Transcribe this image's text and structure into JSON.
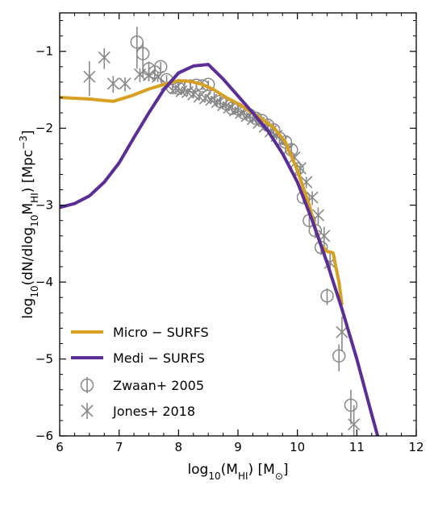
{
  "chart_data": {
    "type": "line",
    "title": "",
    "xlabel": "log₁₀(M_HI) [M⊙]",
    "ylabel": "log₁₀(dN/dlog₁₀M_HI) [Mpc⁻³]",
    "xlim": [
      6,
      12
    ],
    "ylim": [
      -6,
      -0.5
    ],
    "x_ticks": [
      6,
      7,
      8,
      9,
      10,
      11,
      12
    ],
    "y_ticks": [
      -6,
      -5,
      -4,
      -3,
      -2,
      -1
    ],
    "grid": false,
    "legend_position": "bottom-left",
    "series": [
      {
        "name": "Micro − SURFS",
        "color": "#d8a020",
        "style": "line",
        "x": [
          6.0,
          6.5,
          6.9,
          7.2,
          7.5,
          7.8,
          8.0,
          8.2,
          8.4,
          8.6,
          8.8,
          9.0,
          9.2,
          9.4,
          9.6,
          9.8,
          10.0,
          10.2,
          10.3,
          10.4,
          10.5,
          10.6,
          10.7,
          10.75
        ],
        "y": [
          -1.6,
          -1.62,
          -1.65,
          -1.58,
          -1.49,
          -1.42,
          -1.38,
          -1.39,
          -1.43,
          -1.5,
          -1.6,
          -1.68,
          -1.78,
          -1.88,
          -1.99,
          -2.18,
          -2.55,
          -3.0,
          -3.3,
          -3.52,
          -3.6,
          -3.62,
          -4.0,
          -4.3
        ]
      },
      {
        "name": "Medi − SURFS",
        "color": "#5b2d96",
        "style": "line",
        "x": [
          6.0,
          6.25,
          6.5,
          6.75,
          7.0,
          7.25,
          7.5,
          7.75,
          8.0,
          8.25,
          8.5,
          8.75,
          9.0,
          9.25,
          9.5,
          9.75,
          10.0,
          10.25,
          10.5,
          10.75,
          11.0,
          11.25,
          11.35
        ],
        "y": [
          -3.03,
          -2.98,
          -2.88,
          -2.7,
          -2.45,
          -2.12,
          -1.8,
          -1.5,
          -1.28,
          -1.19,
          -1.17,
          -1.36,
          -1.58,
          -1.8,
          -2.03,
          -2.33,
          -2.7,
          -3.2,
          -3.75,
          -4.35,
          -5.0,
          -5.72,
          -6.0
        ]
      },
      {
        "name": "Zwaan+ 2005",
        "color": "#888888",
        "style": "scatter-open-circle-errorbar",
        "x": [
          7.3,
          7.4,
          7.5,
          7.6,
          7.7,
          7.8,
          7.9,
          8.0,
          8.1,
          8.2,
          8.3,
          8.4,
          8.5,
          8.6,
          8.7,
          8.8,
          8.9,
          9.0,
          9.1,
          9.2,
          9.3,
          9.4,
          9.5,
          9.6,
          9.7,
          9.8,
          9.9,
          10.0,
          10.1,
          10.2,
          10.3,
          10.4,
          10.5,
          10.7,
          10.9
        ],
        "y": [
          -0.88,
          -1.03,
          -1.23,
          -1.27,
          -1.2,
          -1.37,
          -1.47,
          -1.48,
          -1.45,
          -1.45,
          -1.44,
          -1.45,
          -1.43,
          -1.58,
          -1.65,
          -1.68,
          -1.74,
          -1.75,
          -1.8,
          -1.83,
          -1.87,
          -1.9,
          -1.96,
          -2.02,
          -2.13,
          -2.18,
          -2.28,
          -2.53,
          -2.9,
          -3.2,
          -3.33,
          -3.55,
          -4.18,
          -4.96,
          -5.6
        ],
        "err_low": [
          0.35,
          0.3,
          0.15,
          0.12,
          0.1,
          0.1,
          0.07,
          0.06,
          0.05,
          0.05,
          0.05,
          0.05,
          0.05,
          0.05,
          0.05,
          0.05,
          0.05,
          0.05,
          0.05,
          0.05,
          0.05,
          0.05,
          0.05,
          0.05,
          0.06,
          0.06,
          0.06,
          0.07,
          0.07,
          0.08,
          0.1,
          0.1,
          0.12,
          0.2,
          0.25
        ],
        "err_high": [
          0.2,
          0.15,
          0.1,
          0.08,
          0.06,
          0.06,
          0.05,
          0.05,
          0.05,
          0.05,
          0.05,
          0.05,
          0.05,
          0.05,
          0.05,
          0.05,
          0.05,
          0.05,
          0.05,
          0.05,
          0.05,
          0.05,
          0.05,
          0.05,
          0.05,
          0.05,
          0.05,
          0.06,
          0.06,
          0.07,
          0.08,
          0.08,
          0.1,
          0.15,
          0.2
        ]
      },
      {
        "name": "Jones+ 2018",
        "color": "#888888",
        "style": "scatter-x-errorbar",
        "x": [
          6.5,
          6.75,
          6.9,
          7.1,
          7.35,
          7.5,
          7.65,
          7.8,
          7.95,
          8.05,
          8.15,
          8.25,
          8.35,
          8.45,
          8.55,
          8.65,
          8.75,
          8.85,
          8.95,
          9.05,
          9.15,
          9.25,
          9.35,
          9.45,
          9.55,
          9.65,
          9.75,
          9.85,
          9.95,
          10.05,
          10.15,
          10.25,
          10.35,
          10.45,
          10.55,
          10.75,
          10.95
        ],
        "y": [
          -1.33,
          -1.08,
          -1.42,
          -1.42,
          -1.3,
          -1.31,
          -1.33,
          -1.43,
          -1.48,
          -1.52,
          -1.53,
          -1.56,
          -1.59,
          -1.61,
          -1.63,
          -1.66,
          -1.7,
          -1.73,
          -1.77,
          -1.8,
          -1.84,
          -1.88,
          -1.93,
          -1.98,
          -2.04,
          -2.1,
          -2.17,
          -2.27,
          -2.38,
          -2.52,
          -2.7,
          -2.9,
          -3.13,
          -3.4,
          -3.75,
          -4.65,
          -5.85
        ],
        "err_low": [
          0.25,
          0.15,
          0.12,
          0.1,
          0.1,
          0.08,
          0.07,
          0.06,
          0.05,
          0.05,
          0.05,
          0.05,
          0.05,
          0.05,
          0.05,
          0.05,
          0.05,
          0.05,
          0.05,
          0.05,
          0.05,
          0.05,
          0.05,
          0.05,
          0.05,
          0.05,
          0.05,
          0.06,
          0.06,
          0.07,
          0.08,
          0.1,
          0.12,
          0.15,
          0.18,
          0.25,
          0.3
        ],
        "err_high": [
          0.2,
          0.12,
          0.1,
          0.08,
          0.08,
          0.06,
          0.06,
          0.05,
          0.05,
          0.05,
          0.05,
          0.05,
          0.05,
          0.05,
          0.05,
          0.05,
          0.05,
          0.05,
          0.05,
          0.05,
          0.05,
          0.05,
          0.05,
          0.05,
          0.05,
          0.05,
          0.05,
          0.05,
          0.05,
          0.06,
          0.07,
          0.08,
          0.1,
          0.12,
          0.15,
          0.2,
          0.25
        ]
      }
    ],
    "legend": [
      {
        "label": "Micro − SURFS",
        "series": 0
      },
      {
        "label": "Medi − SURFS",
        "series": 1
      },
      {
        "label": "Zwaan+ 2005",
        "series": 2
      },
      {
        "label": "Jones+ 2018",
        "series": 3
      }
    ]
  }
}
